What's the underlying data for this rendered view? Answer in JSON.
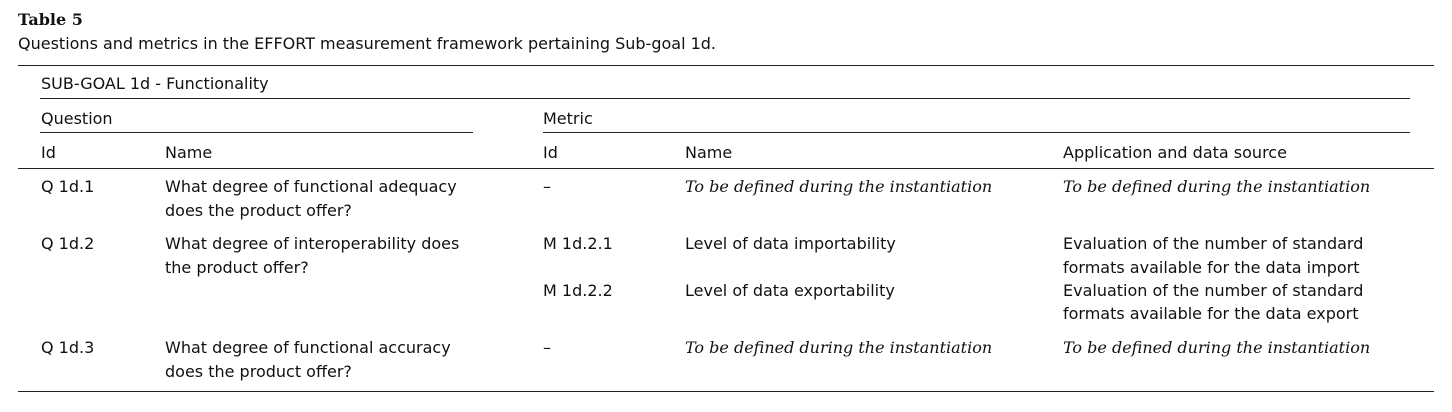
{
  "caption": {
    "label": "Table 5",
    "text": "Questions and metrics in the EFFORT measurement framework pertaining Sub-goal 1d."
  },
  "table": {
    "subgoal_header": "SUB-GOAL 1d - Functionality",
    "group_headers": {
      "question": "Question",
      "metric": "Metric"
    },
    "column_headers": {
      "q_id": "Id",
      "q_name": "Name",
      "m_id": "Id",
      "m_name": "Name",
      "m_app": "Application and data source"
    },
    "rows": [
      {
        "q_id": "Q 1d.1",
        "q_name_lines": [
          "What degree of functional adequacy",
          "does the product offer?"
        ],
        "metrics": [
          {
            "m_id": "–",
            "m_name": "To be defined during the instantiation",
            "m_app_lines": [
              "To be defined during the instantiation"
            ],
            "italic": true
          }
        ]
      },
      {
        "q_id": "Q 1d.2",
        "q_name_lines": [
          "What degree of interoperability does",
          "the product offer?"
        ],
        "metrics": [
          {
            "m_id": "M 1d.2.1",
            "m_name": "Level of data importability",
            "m_app_lines": [
              "Evaluation of the number of standard",
              "formats available for the data import"
            ],
            "italic": false
          },
          {
            "m_id": "M 1d.2.2",
            "m_name": "Level of data exportability",
            "m_app_lines": [
              "Evaluation of the number of standard",
              "formats available for the data export"
            ],
            "italic": false
          }
        ]
      },
      {
        "q_id": "Q 1d.3",
        "q_name_lines": [
          "What degree of functional accuracy",
          "does the product offer?"
        ],
        "metrics": [
          {
            "m_id": "–",
            "m_name": "To be defined during the instantiation",
            "m_app_lines": [
              "To be defined during the instantiation"
            ],
            "italic": true
          }
        ]
      }
    ]
  }
}
